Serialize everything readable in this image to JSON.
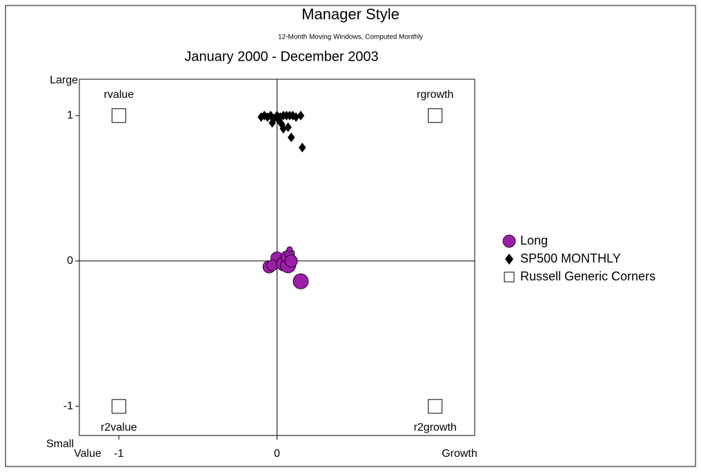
{
  "chart_data": {
    "type": "scatter",
    "title": "Manager Style",
    "subtitle": "12-Month Moving Windows, Computed Monthly",
    "period": "January 2000 - December 2003",
    "x_low_label": "Value",
    "x_high_label": "Growth",
    "y_high_label": "Large",
    "y_low_label": "Small",
    "xlim": [
      -1.25,
      1.25
    ],
    "ylim": [
      -1.2,
      1.25
    ],
    "xticks": [
      -1,
      0
    ],
    "yticks": [
      -1,
      0,
      1
    ],
    "legend": "right",
    "series": [
      {
        "name": "Long",
        "color": "#9b1fa8",
        "marker": "circle",
        "x": [
          0.0,
          -0.05,
          -0.03,
          0.04,
          0.07,
          0.06,
          0.08,
          0.09,
          0.15,
          0.08
        ],
        "y": [
          0.02,
          -0.04,
          -0.03,
          -0.02,
          -0.03,
          0.03,
          0.05,
          0.0,
          -0.14,
          0.08
        ],
        "sizes": [
          9,
          9,
          8,
          10,
          11,
          8,
          7,
          9,
          11,
          4
        ]
      },
      {
        "name": "SP500 MONTHLY",
        "color": "#000000",
        "marker": "diamond",
        "x": [
          -0.1,
          -0.08,
          -0.06,
          -0.04,
          -0.02,
          0.0,
          0.02,
          0.04,
          0.06,
          0.08,
          0.1,
          0.12,
          0.15,
          -0.03,
          0.03,
          0.04,
          0.07,
          0.09,
          0.16,
          0.01
        ],
        "y": [
          0.99,
          1.0,
          0.99,
          1.0,
          0.98,
          1.0,
          0.99,
          1.0,
          1.0,
          1.0,
          1.0,
          0.99,
          1.0,
          0.95,
          0.94,
          0.91,
          0.92,
          0.85,
          0.78,
          0.97
        ]
      },
      {
        "name": "Russell Generic Corners",
        "color": "#ffffff",
        "marker": "square",
        "x": [
          -1,
          1,
          -1,
          1
        ],
        "y": [
          1,
          1,
          -1,
          -1
        ],
        "point_labels": [
          "rvalue",
          "rgrowth",
          "r2value",
          "r2growth"
        ]
      }
    ]
  }
}
